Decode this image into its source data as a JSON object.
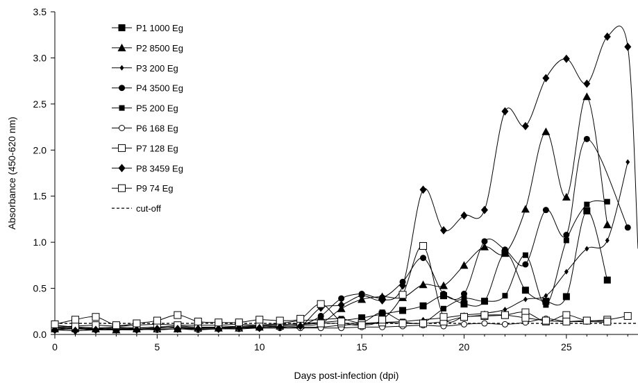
{
  "chart_data": {
    "type": "line",
    "xlabel": "Days post-infection (dpi)",
    "ylabel": "Absorbance (450-620 nm)",
    "xlim": [
      0,
      28.5
    ],
    "ylim": [
      0,
      3.5
    ],
    "xticks": [
      0,
      5,
      10,
      15,
      20,
      25
    ],
    "yticks": [
      0.0,
      0.5,
      1.0,
      1.5,
      2.0,
      2.5,
      3.0,
      3.5
    ],
    "ytick_labels": [
      "0.0",
      "0.5",
      "1.0",
      "1.5",
      "2.0",
      "2.5",
      "3.0",
      "3.5"
    ],
    "legend_position": "top-left",
    "line_color": "#000000",
    "series": [
      {
        "name": "P1 1000 Eg",
        "marker": "square-filled",
        "x": [
          0,
          1,
          2,
          3,
          4,
          5,
          6,
          7,
          8,
          9,
          10,
          11,
          12,
          13,
          14,
          15,
          16,
          17,
          18,
          19,
          20,
          21,
          22,
          23,
          24,
          25,
          26,
          27
        ],
        "y": [
          0.08,
          0.06,
          0.06,
          0.07,
          0.06,
          0.07,
          0.08,
          0.07,
          0.08,
          0.08,
          0.09,
          0.1,
          0.12,
          0.13,
          0.15,
          0.18,
          0.22,
          0.26,
          0.31,
          0.42,
          0.33,
          0.36,
          0.88,
          0.48,
          0.36,
          0.41,
          1.34,
          0.59
        ]
      },
      {
        "name": "P2 8500 Eg",
        "marker": "triangle-filled",
        "x": [
          0,
          1,
          2,
          3,
          4,
          5,
          6,
          7,
          8,
          9,
          10,
          11,
          12,
          13,
          14,
          15,
          16,
          17,
          18,
          19,
          20,
          21,
          22,
          23,
          24,
          25,
          26,
          27
        ],
        "y": [
          0.06,
          0.07,
          0.06,
          0.05,
          0.06,
          0.06,
          0.06,
          0.07,
          0.07,
          0.07,
          0.08,
          0.09,
          0.1,
          0.12,
          0.28,
          0.38,
          0.41,
          0.4,
          0.54,
          0.53,
          0.75,
          0.95,
          0.88,
          1.36,
          2.2,
          1.49,
          2.58,
          1.19
        ]
      },
      {
        "name": "P3 200 Eg",
        "marker": "diamond-small",
        "x": [
          0,
          1,
          2,
          3,
          4,
          5,
          6,
          7,
          8,
          9,
          10,
          11,
          12,
          13,
          14,
          15,
          16,
          17,
          18,
          19,
          20,
          21,
          22,
          23,
          24,
          25,
          26,
          27,
          28
        ],
        "y": [
          0.05,
          0.06,
          0.05,
          0.06,
          0.05,
          0.06,
          0.06,
          0.06,
          0.06,
          0.07,
          0.07,
          0.07,
          0.08,
          0.08,
          0.1,
          0.11,
          0.13,
          0.14,
          0.16,
          0.18,
          0.21,
          0.23,
          0.27,
          0.38,
          0.42,
          0.68,
          0.93,
          1.02,
          1.87
        ]
      },
      {
        "name": "P4 3500 Eg",
        "marker": "circle-filled",
        "x": [
          0,
          1,
          2,
          3,
          4,
          5,
          6,
          7,
          8,
          9,
          10,
          11,
          12,
          13,
          14,
          15,
          16,
          17,
          18,
          19,
          20,
          21,
          22,
          23,
          24,
          25,
          26,
          28
        ],
        "y": [
          0.07,
          0.08,
          0.07,
          0.06,
          0.07,
          0.08,
          0.07,
          0.07,
          0.07,
          0.08,
          0.08,
          0.09,
          0.1,
          0.2,
          0.39,
          0.44,
          0.4,
          0.57,
          0.83,
          0.44,
          0.44,
          1.01,
          0.92,
          0.76,
          1.35,
          1.08,
          2.12,
          1.16
        ]
      },
      {
        "name": "P5 200 Eg",
        "marker": "square-filled-small",
        "x": [
          0,
          1,
          2,
          3,
          4,
          5,
          6,
          7,
          8,
          9,
          10,
          11,
          12,
          13,
          14,
          15,
          16,
          17,
          18,
          19,
          20,
          21,
          22,
          23,
          24,
          25,
          26,
          27
        ],
        "y": [
          0.1,
          0.08,
          0.07,
          0.08,
          0.07,
          0.08,
          0.09,
          0.08,
          0.08,
          0.09,
          0.1,
          0.12,
          0.15,
          0.16,
          0.17,
          0.13,
          0.24,
          0.14,
          0.13,
          0.28,
          0.39,
          0.36,
          0.42,
          0.86,
          0.32,
          1.02,
          1.41,
          1.44
        ]
      },
      {
        "name": "P6 168 Eg",
        "marker": "circle-open",
        "x": [
          0,
          1,
          2,
          3,
          4,
          5,
          6,
          7,
          8,
          9,
          10,
          11,
          12,
          13,
          14,
          15,
          16,
          17,
          18,
          19,
          20,
          21,
          22,
          23,
          24,
          25,
          26,
          27
        ],
        "y": [
          0.05,
          0.06,
          0.05,
          0.05,
          0.06,
          0.05,
          0.06,
          0.05,
          0.06,
          0.06,
          0.07,
          0.07,
          0.07,
          0.07,
          0.07,
          0.08,
          0.08,
          0.09,
          0.1,
          0.09,
          0.11,
          0.12,
          0.11,
          0.13,
          0.17,
          0.14,
          0.14,
          0.13
        ]
      },
      {
        "name": "P7 128 Eg",
        "marker": "square-open",
        "x": [
          0,
          1,
          2,
          3,
          4,
          5,
          6,
          7,
          8,
          9,
          10,
          11,
          12,
          13,
          14,
          15,
          16,
          17,
          18,
          19,
          20,
          21,
          22,
          23,
          24,
          25,
          26,
          27,
          28
        ],
        "y": [
          0.08,
          0.09,
          0.1,
          0.09,
          0.1,
          0.11,
          0.1,
          0.1,
          0.1,
          0.11,
          0.1,
          0.11,
          0.11,
          0.12,
          0.12,
          0.12,
          0.13,
          0.12,
          0.12,
          0.14,
          0.19,
          0.2,
          0.21,
          0.24,
          0.14,
          0.21,
          0.15,
          0.16,
          0.2
        ]
      },
      {
        "name": "P8 3459 Eg",
        "marker": "diamond-filled",
        "x": [
          0,
          1,
          2,
          3,
          4,
          5,
          6,
          7,
          8,
          9,
          10,
          11,
          12,
          13,
          14,
          15,
          16,
          17,
          18,
          19,
          20,
          21,
          22,
          23,
          24,
          25,
          26,
          27,
          28,
          28.5
        ],
        "y": [
          0.05,
          0.04,
          0.05,
          0.05,
          0.05,
          0.06,
          0.06,
          0.06,
          0.06,
          0.07,
          0.07,
          0.08,
          0.09,
          0.29,
          0.32,
          0.42,
          0.37,
          0.53,
          1.57,
          1.13,
          1.29,
          1.35,
          2.42,
          2.26,
          2.78,
          2.99,
          2.72,
          3.23,
          3.12,
          0.93
        ]
      },
      {
        "name": "P9 74 Eg",
        "marker": "square-open",
        "x": [
          0,
          1,
          2,
          3,
          4,
          5,
          6,
          7,
          8,
          9,
          10,
          11,
          12,
          13,
          14,
          15,
          16,
          17,
          18,
          19,
          20,
          21,
          22,
          23,
          24,
          25,
          26,
          27
        ],
        "y": [
          0.11,
          0.16,
          0.19,
          0.1,
          0.12,
          0.15,
          0.21,
          0.14,
          0.13,
          0.13,
          0.16,
          0.15,
          0.17,
          0.33,
          0.14,
          0.1,
          0.16,
          0.43,
          0.96,
          0.19,
          0.19,
          0.21,
          0.21,
          0.18,
          0.15,
          0.14,
          0.15,
          0.14
        ]
      }
    ],
    "cutoff": {
      "name": "cut-off",
      "y": 0.12,
      "style": "dashed"
    }
  }
}
